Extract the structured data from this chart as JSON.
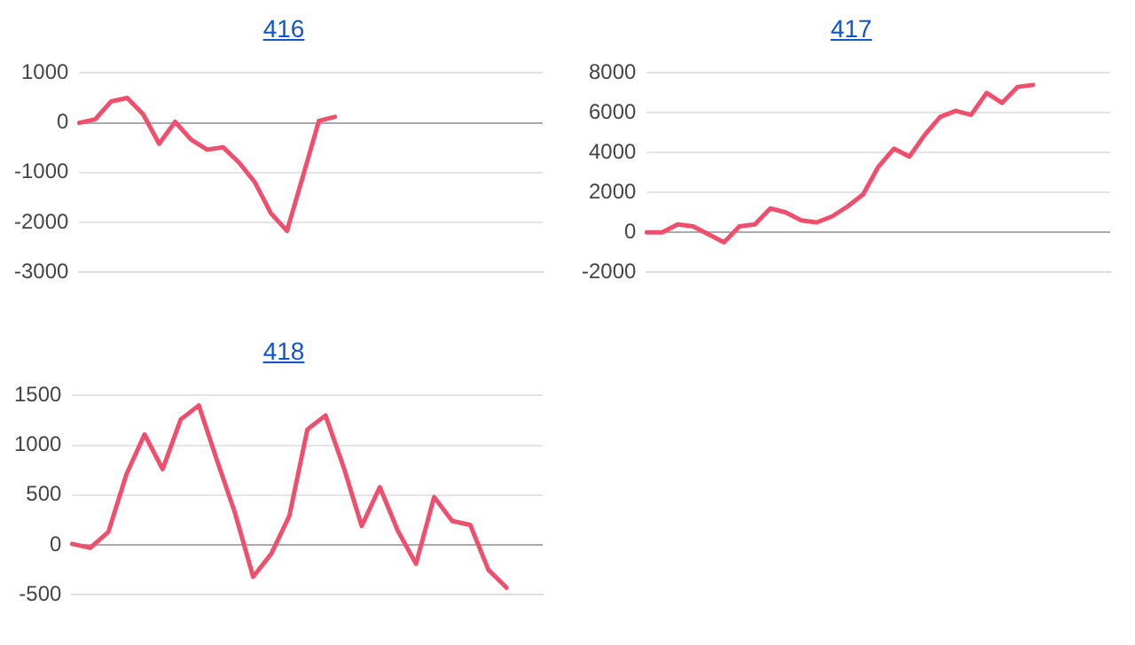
{
  "chart_data": [
    {
      "type": "line",
      "title": "416",
      "categories": [
        null,
        null,
        null,
        null,
        null,
        null,
        null,
        null,
        null,
        null,
        null,
        null,
        null,
        null,
        null,
        null,
        null,
        null,
        null,
        null,
        null,
        null,
        null,
        null,
        null,
        null,
        null,
        null,
        null,
        null
      ],
      "series": [
        {
          "color": "#ef4f6c",
          "values": [
            0,
            70,
            430,
            500,
            170,
            -420,
            20,
            -340,
            -540,
            -490,
            -800,
            -1200,
            -1820,
            -2170,
            -1070,
            40,
            120,
            null,
            null,
            null,
            null,
            null,
            null,
            null,
            null,
            null,
            null,
            null,
            null,
            null
          ]
        }
      ],
      "ylim": [
        -3000,
        1000
      ],
      "yticks": [
        -3000,
        -2000,
        -1000,
        0,
        1000
      ],
      "grid": "y",
      "legend": false,
      "marker": "none"
    },
    {
      "type": "line",
      "title": "417",
      "categories": [
        null,
        null,
        null,
        null,
        null,
        null,
        null,
        null,
        null,
        null,
        null,
        null,
        null,
        null,
        null,
        null,
        null,
        null,
        null,
        null,
        null,
        null,
        null,
        null,
        null,
        null,
        null,
        null,
        null,
        null,
        null
      ],
      "series": [
        {
          "color": "#ef4f6c",
          "values": [
            0,
            0,
            400,
            300,
            -100,
            -500,
            300,
            400,
            1200,
            1000,
            600,
            500,
            800,
            1300,
            1900,
            3300,
            4200,
            3800,
            4900,
            5800,
            6100,
            5900,
            7000,
            6500,
            7300,
            7400,
            null,
            null,
            null,
            null,
            null
          ]
        }
      ],
      "ylim": [
        -2000,
        8000
      ],
      "yticks": [
        -2000,
        0,
        2000,
        4000,
        6000,
        8000
      ],
      "grid": "y",
      "legend": false,
      "marker": "none"
    },
    {
      "type": "line",
      "title": "418",
      "categories": [
        null,
        null,
        null,
        null,
        null,
        null,
        null,
        null,
        null,
        null,
        null,
        null,
        null,
        null,
        null,
        null,
        null,
        null,
        null,
        null,
        null,
        null,
        null,
        null,
        null,
        null,
        null
      ],
      "series": [
        {
          "color": "#ef4f6c",
          "values": [
            10,
            -30,
            130,
            710,
            1110,
            760,
            1260,
            1400,
            850,
            320,
            -320,
            -90,
            290,
            1160,
            1300,
            780,
            190,
            580,
            140,
            -190,
            480,
            240,
            200,
            -250,
            -430,
            null,
            null
          ]
        }
      ],
      "ylim": [
        -500,
        1500
      ],
      "yticks": [
        -500,
        0,
        500,
        1000,
        1500
      ],
      "grid": "y",
      "legend": false,
      "marker": "none"
    }
  ]
}
